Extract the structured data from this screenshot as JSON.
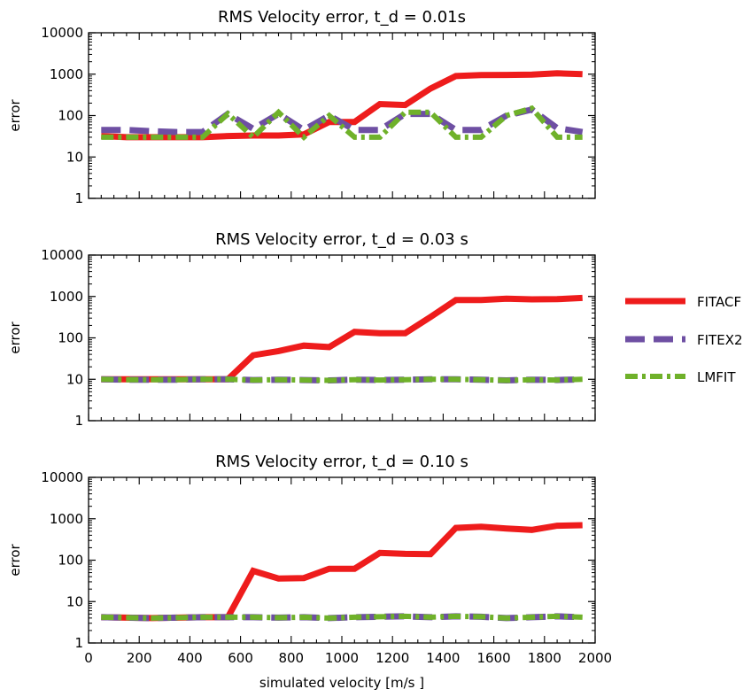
{
  "chart_data": [
    {
      "type": "line",
      "title": "RMS Velocity error, t_d = 0.01s",
      "xlabel": "",
      "ylabel": "error",
      "xlim": [
        0,
        2000
      ],
      "ylim": [
        1,
        10000
      ],
      "yscale": "log",
      "x_ticks": [
        0,
        200,
        400,
        600,
        800,
        1000,
        1200,
        1400,
        1600,
        1800,
        2000
      ],
      "x_tick_labels_shown": false,
      "y_ticks": [
        "1",
        "10",
        "100",
        "1000",
        "10000"
      ],
      "x": [
        50,
        150,
        250,
        350,
        450,
        550,
        650,
        750,
        850,
        950,
        1050,
        1150,
        1250,
        1350,
        1450,
        1550,
        1650,
        1750,
        1850,
        1950
      ],
      "series": [
        {
          "name": "FITACF",
          "values": [
            32,
            30,
            30,
            30,
            30,
            32,
            33,
            33,
            35,
            70,
            70,
            190,
            180,
            450,
            900,
            950,
            960,
            980,
            1050,
            1000
          ]
        },
        {
          "name": "FITEX2",
          "values": [
            45,
            45,
            42,
            40,
            40,
            110,
            48,
            110,
            45,
            100,
            45,
            45,
            110,
            110,
            45,
            45,
            100,
            140,
            50,
            40
          ]
        },
        {
          "name": "LMFIT",
          "values": [
            30,
            30,
            30,
            30,
            30,
            110,
            30,
            120,
            30,
            100,
            30,
            30,
            120,
            120,
            30,
            30,
            100,
            150,
            30,
            30
          ]
        }
      ]
    },
    {
      "type": "line",
      "title": "RMS Velocity error, t_d = 0.03 s",
      "xlabel": "",
      "ylabel": "error",
      "xlim": [
        0,
        2000
      ],
      "ylim": [
        1,
        10000
      ],
      "yscale": "log",
      "x_ticks": [
        0,
        200,
        400,
        600,
        800,
        1000,
        1200,
        1400,
        1600,
        1800,
        2000
      ],
      "x_tick_labels_shown": false,
      "y_ticks": [
        "1",
        "10",
        "100",
        "1000",
        "10000"
      ],
      "x": [
        50,
        150,
        250,
        350,
        450,
        550,
        650,
        750,
        850,
        950,
        1050,
        1150,
        1250,
        1350,
        1450,
        1550,
        1650,
        1750,
        1850,
        1950
      ],
      "series": [
        {
          "name": "FITACF",
          "values": [
            10,
            10,
            10,
            10,
            10,
            10,
            38,
            48,
            65,
            60,
            140,
            130,
            130,
            320,
            820,
            820,
            880,
            850,
            860,
            920
          ]
        },
        {
          "name": "FITEX2",
          "values": [
            10,
            9.8,
            9.8,
            9.8,
            10,
            10,
            9.6,
            9.8,
            9.6,
            9.4,
            9.8,
            9.6,
            9.8,
            10,
            10,
            9.8,
            9.4,
            9.8,
            9.6,
            10
          ]
        },
        {
          "name": "LMFIT",
          "values": [
            10,
            9.8,
            9.8,
            9.8,
            10,
            10,
            9.6,
            9.8,
            9.6,
            9.4,
            9.8,
            9.6,
            9.8,
            10,
            10,
            9.8,
            9.4,
            9.8,
            9.6,
            10
          ]
        }
      ]
    },
    {
      "type": "line",
      "title": "RMS Velocity error, t_d = 0.10 s",
      "xlabel": "simulated velocity [m/s ]",
      "ylabel": "error",
      "xlim": [
        0,
        2000
      ],
      "ylim": [
        1,
        10000
      ],
      "yscale": "log",
      "x_ticks": [
        0,
        200,
        400,
        600,
        800,
        1000,
        1200,
        1400,
        1600,
        1800,
        2000
      ],
      "x_tick_labels_shown": true,
      "y_ticks": [
        "1",
        "10",
        "100",
        "1000",
        "10000"
      ],
      "x": [
        50,
        150,
        250,
        350,
        450,
        550,
        650,
        750,
        850,
        950,
        1050,
        1150,
        1250,
        1350,
        1450,
        1550,
        1650,
        1750,
        1850,
        1950
      ],
      "series": [
        {
          "name": "FITACF",
          "values": [
            4.2,
            4.1,
            4,
            4.1,
            4.2,
            4.2,
            55,
            36,
            37,
            62,
            62,
            150,
            142,
            140,
            600,
            640,
            580,
            540,
            680,
            700
          ]
        },
        {
          "name": "FITEX2",
          "values": [
            4.2,
            4.1,
            4,
            4.1,
            4.2,
            4.2,
            4.2,
            4.1,
            4.2,
            4,
            4.2,
            4.3,
            4.4,
            4.2,
            4.4,
            4.3,
            4,
            4.2,
            4.4,
            4.2
          ]
        },
        {
          "name": "LMFIT",
          "values": [
            4.2,
            4.1,
            4,
            4.1,
            4.2,
            4.2,
            4.2,
            4.1,
            4.2,
            4,
            4.2,
            4.3,
            4.4,
            4.2,
            4.4,
            4.3,
            4,
            4.2,
            4.4,
            4.2
          ]
        }
      ]
    }
  ],
  "legend": {
    "placement": "right",
    "items": [
      {
        "label": "FITACF",
        "color": "#ee1c1c",
        "style": "solid"
      },
      {
        "label": "FITEX2",
        "color": "#6e4fa3",
        "style": "dashed"
      },
      {
        "label": "LMFIT",
        "color": "#6fb12a",
        "style": "dash-dot"
      }
    ]
  },
  "colors": {
    "fitacf": "#ee1c1c",
    "fitex2": "#6e4fa3",
    "lmfit": "#6fb12a"
  }
}
